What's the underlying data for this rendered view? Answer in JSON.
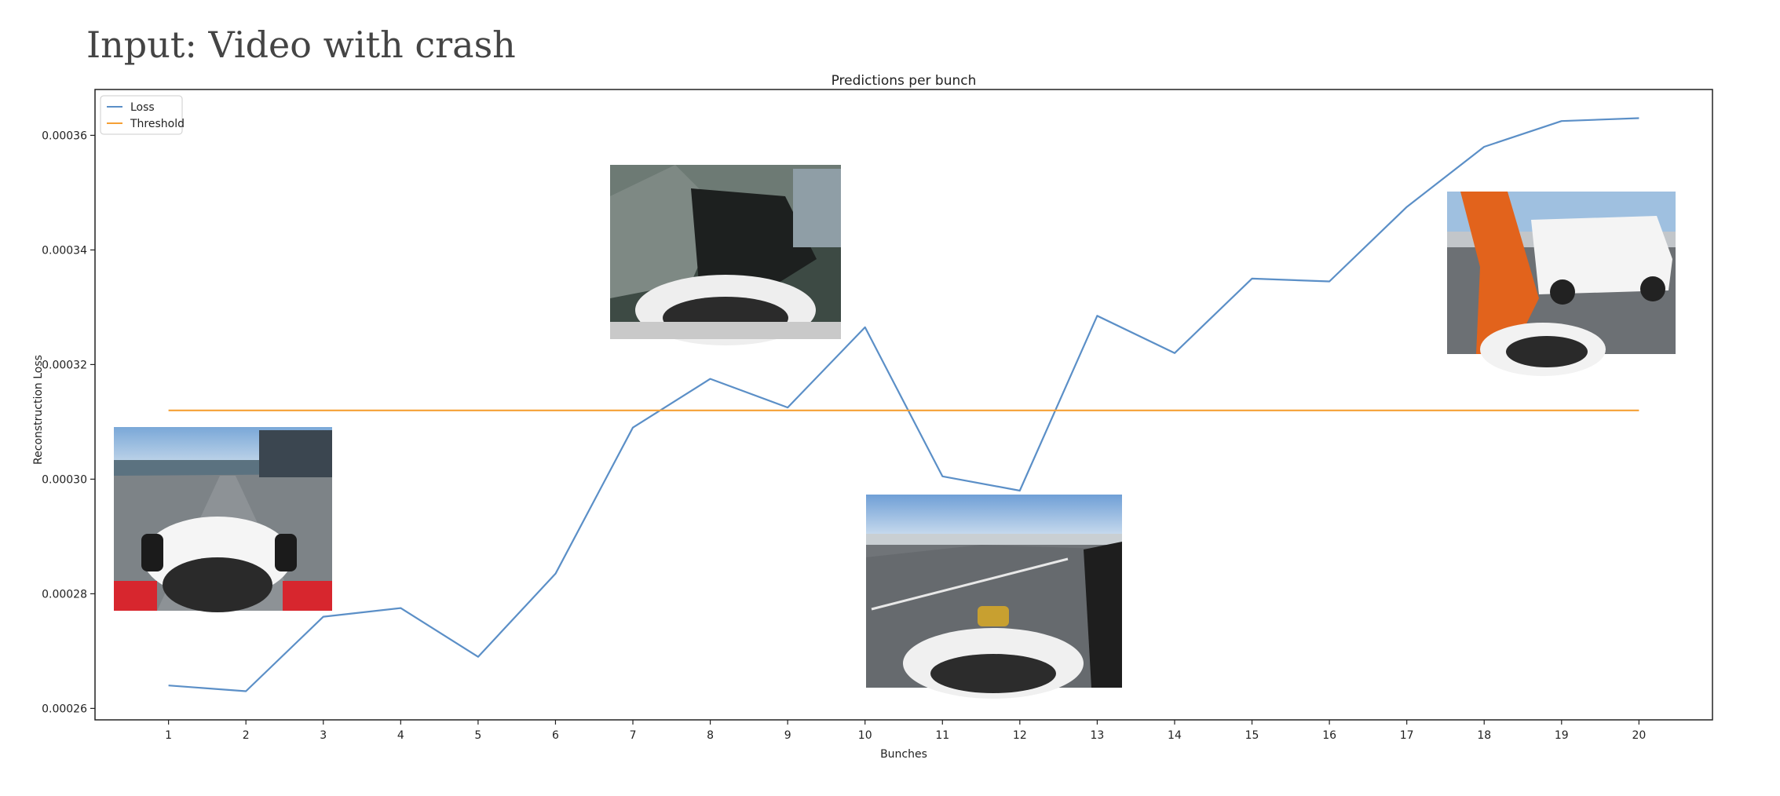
{
  "heading": "Input: Video with crash",
  "chart_data": {
    "type": "line",
    "title": "Predictions per bunch",
    "xlabel": "Bunches",
    "ylabel": "Reconstruction Loss",
    "x": [
      1,
      2,
      3,
      4,
      5,
      6,
      7,
      8,
      9,
      10,
      11,
      12,
      13,
      14,
      15,
      16,
      17,
      18,
      19,
      20
    ],
    "xlim": [
      0.05,
      20.95
    ],
    "ylim": [
      0.000258,
      0.000368
    ],
    "yticks": [
      0.00026,
      0.00028,
      0.0003,
      0.00032,
      0.00034,
      0.00036
    ],
    "ytick_labels": [
      "0.00026",
      "0.00028",
      "0.00030",
      "0.00032",
      "0.00034",
      "0.00036"
    ],
    "xtick_labels": [
      "1",
      "2",
      "3",
      "4",
      "5",
      "6",
      "7",
      "8",
      "9",
      "10",
      "11",
      "12",
      "13",
      "14",
      "15",
      "16",
      "17",
      "18",
      "19",
      "20"
    ],
    "series": [
      {
        "name": "Loss",
        "color": "#5b8fc7",
        "values": [
          0.000264,
          0.000263,
          0.000276,
          0.0002775,
          0.000269,
          0.0002835,
          0.000309,
          0.0003175,
          0.0003125,
          0.0003265,
          0.0003005,
          0.000298,
          0.0003285,
          0.000322,
          0.000335,
          0.0003345,
          0.0003475,
          0.000358,
          0.0003625,
          0.000363
        ]
      },
      {
        "name": "Threshold",
        "color": "#f5a035",
        "values": [
          0.000312,
          0.000312,
          0.000312,
          0.000312,
          0.000312,
          0.000312,
          0.000312,
          0.000312,
          0.000312,
          0.000312,
          0.000312,
          0.000312,
          0.000312,
          0.000312,
          0.000312,
          0.000312,
          0.000312,
          0.000312,
          0.000312,
          0.000312
        ]
      }
    ],
    "legend": "upper-left",
    "grid": false,
    "inset_images": [
      {
        "icon": "race-car-cockpit-track-icon",
        "near_bunch": 1
      },
      {
        "icon": "crash-debris-cockpit-icon",
        "near_bunch": 8
      },
      {
        "icon": "race-car-cockpit-straight-icon",
        "near_bunch": 11
      },
      {
        "icon": "marshal-and-safety-truck-icon",
        "near_bunch": 19
      }
    ]
  }
}
